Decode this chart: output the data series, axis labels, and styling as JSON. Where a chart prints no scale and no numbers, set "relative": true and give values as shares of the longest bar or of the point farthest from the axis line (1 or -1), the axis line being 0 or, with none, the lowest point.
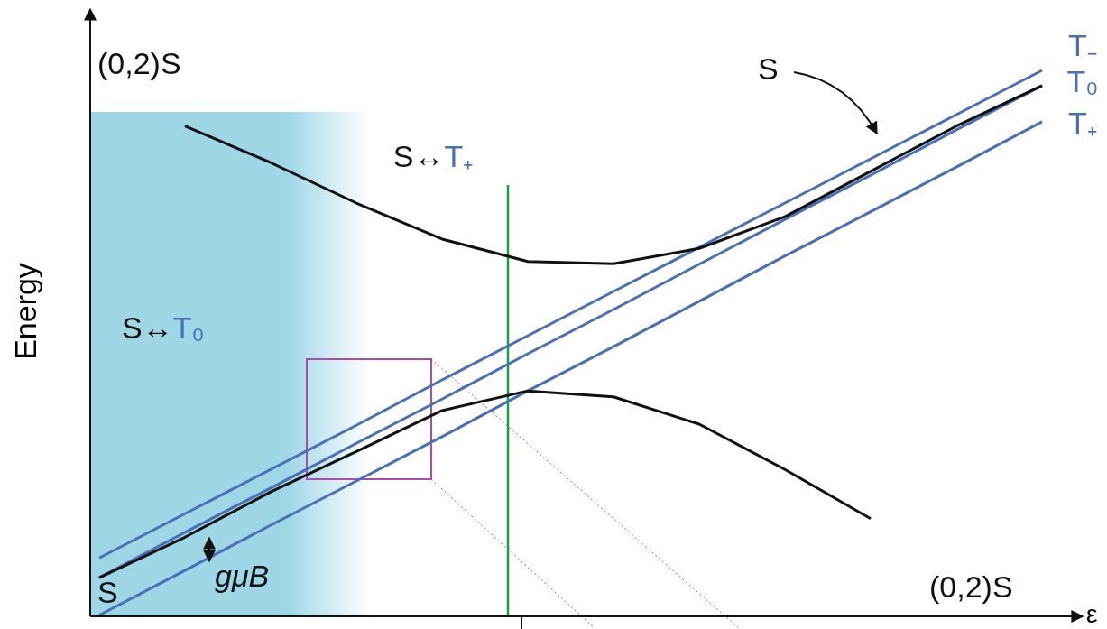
{
  "chart_data": {
    "type": "line",
    "relative": true,
    "xlabel": "ε",
    "ylabel": "Energy",
    "categories": [
      null,
      null,
      null,
      null,
      null,
      null,
      null,
      null,
      null,
      null,
      null,
      null
    ],
    "grid": false,
    "legend": false,
    "marker": "none",
    "line_style": "solid",
    "series": [
      {
        "name": "T₋",
        "color": "#4a6fb5",
        "values": [
          0.107,
          0.188,
          0.269,
          0.35,
          0.433,
          0.514,
          0.595,
          0.676,
          0.757,
          0.838,
          0.919,
          1.0
        ]
      },
      {
        "name": "T₀",
        "color": "#4a6fb5",
        "values": [
          0.071,
          0.154,
          0.235,
          0.317,
          0.398,
          0.481,
          0.562,
          0.645,
          0.727,
          0.808,
          0.891,
          0.972
        ]
      },
      {
        "name": "T₊",
        "color": "#4a6fb5",
        "values": [
          0.002,
          0.084,
          0.167,
          0.248,
          0.329,
          0.413,
          0.494,
          0.577,
          0.66,
          0.741,
          0.823,
          0.906
        ]
      },
      {
        "name": "S",
        "color": "#111111",
        "values": [
          null,
          0.898,
          0.831,
          0.757,
          0.691,
          0.65,
          0.646,
          0.674,
          0.732,
          0.815,
          0.898,
          0.972
        ]
      },
      {
        "color": "#111111",
        "values": [
          0.071,
          0.145,
          0.228,
          0.302,
          0.377,
          0.413,
          0.402,
          0.352,
          0.269,
          0.179,
          null,
          null
        ]
      }
    ],
    "annotations": [
      "(0,2)S",
      "(0,2)S",
      "S↔T₊",
      "S↔T₀",
      "S",
      "gμB"
    ]
  }
}
